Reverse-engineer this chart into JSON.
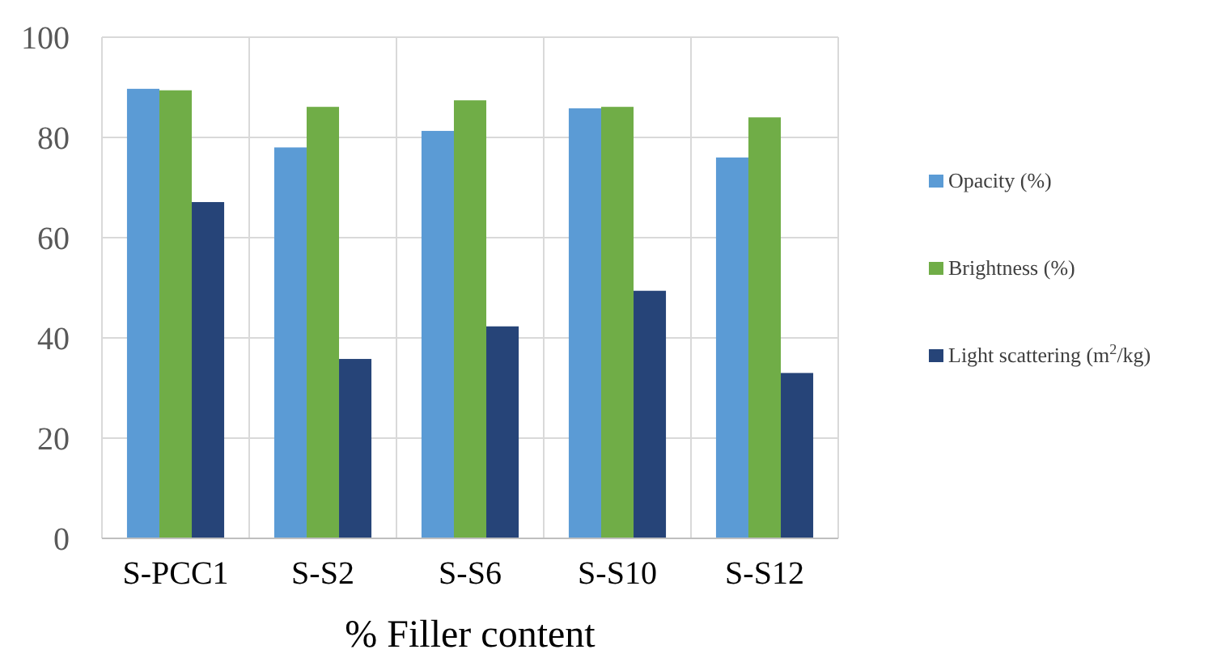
{
  "chart_data": {
    "type": "bar",
    "xlabel": "% Filler content",
    "categories": [
      "S-PCC1",
      "S-S2",
      "S-S6",
      "S-S10",
      "S-S12"
    ],
    "series": [
      {
        "name": "Opacity (%)",
        "color": "#5b9bd5",
        "values": [
          89.7,
          78,
          81.3,
          85.8,
          76
        ]
      },
      {
        "name": "Brightness (%)",
        "color": "#70ad47",
        "values": [
          89.4,
          86.1,
          87.4,
          86.1,
          84
        ]
      },
      {
        "name": "Light scattering (m$^{2}$/kg)",
        "color": "#264478",
        "values": [
          67.1,
          35.8,
          42.3,
          49.4,
          33
        ]
      }
    ],
    "ylim": [
      0,
      100
    ],
    "yticks": [
      0,
      20,
      40,
      60,
      80,
      100
    ],
    "grid": true,
    "legend": "right"
  }
}
